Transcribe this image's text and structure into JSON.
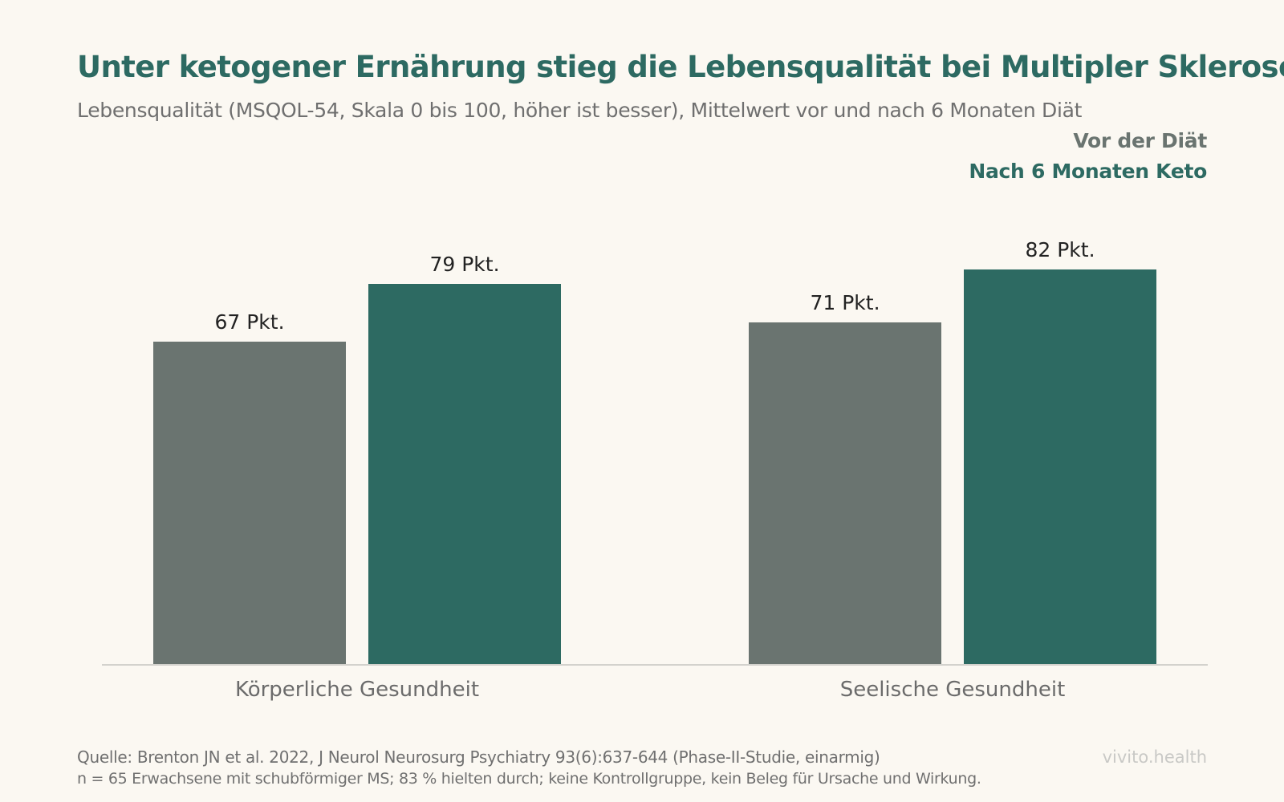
{
  "chart_data": {
    "type": "bar",
    "title": "Unter ketogener Ernährung stieg die Lebensqualität bei Multipler Sklerose",
    "subtitle": "Lebensqualität (MSQOL-54, Skala 0 bis 100, höher ist besser), Mittelwert vor und nach 6 Monaten Diät",
    "categories": [
      "Körperliche Gesundheit",
      "Seelische Gesundheit"
    ],
    "series": [
      {
        "name": "Vor der Diät",
        "values": [
          67,
          71
        ],
        "labels": [
          "67 Pkt.",
          "71 Pkt."
        ],
        "color": "#6a7470"
      },
      {
        "name": "Nach 6 Monaten Keto",
        "values": [
          79,
          82
        ],
        "labels": [
          "79 Pkt.",
          "82 Pkt."
        ],
        "color": "#2d6a62"
      }
    ],
    "ylim": [
      0,
      100
    ],
    "grid": false,
    "legend": "top-right",
    "xlabel": "",
    "ylabel": ""
  },
  "footer": {
    "source": "Quelle: Brenton JN et al. 2022, J Neurol Neurosurg Psychiatry 93(6):637-644 (Phase-II-Studie, einarmig)",
    "note": "n = 65 Erwachsene mit schubförmiger MS; 83 % hielten durch; keine Kontrollgruppe, kein Beleg für Ursache und Wirkung.",
    "brand": "vivito.health"
  }
}
